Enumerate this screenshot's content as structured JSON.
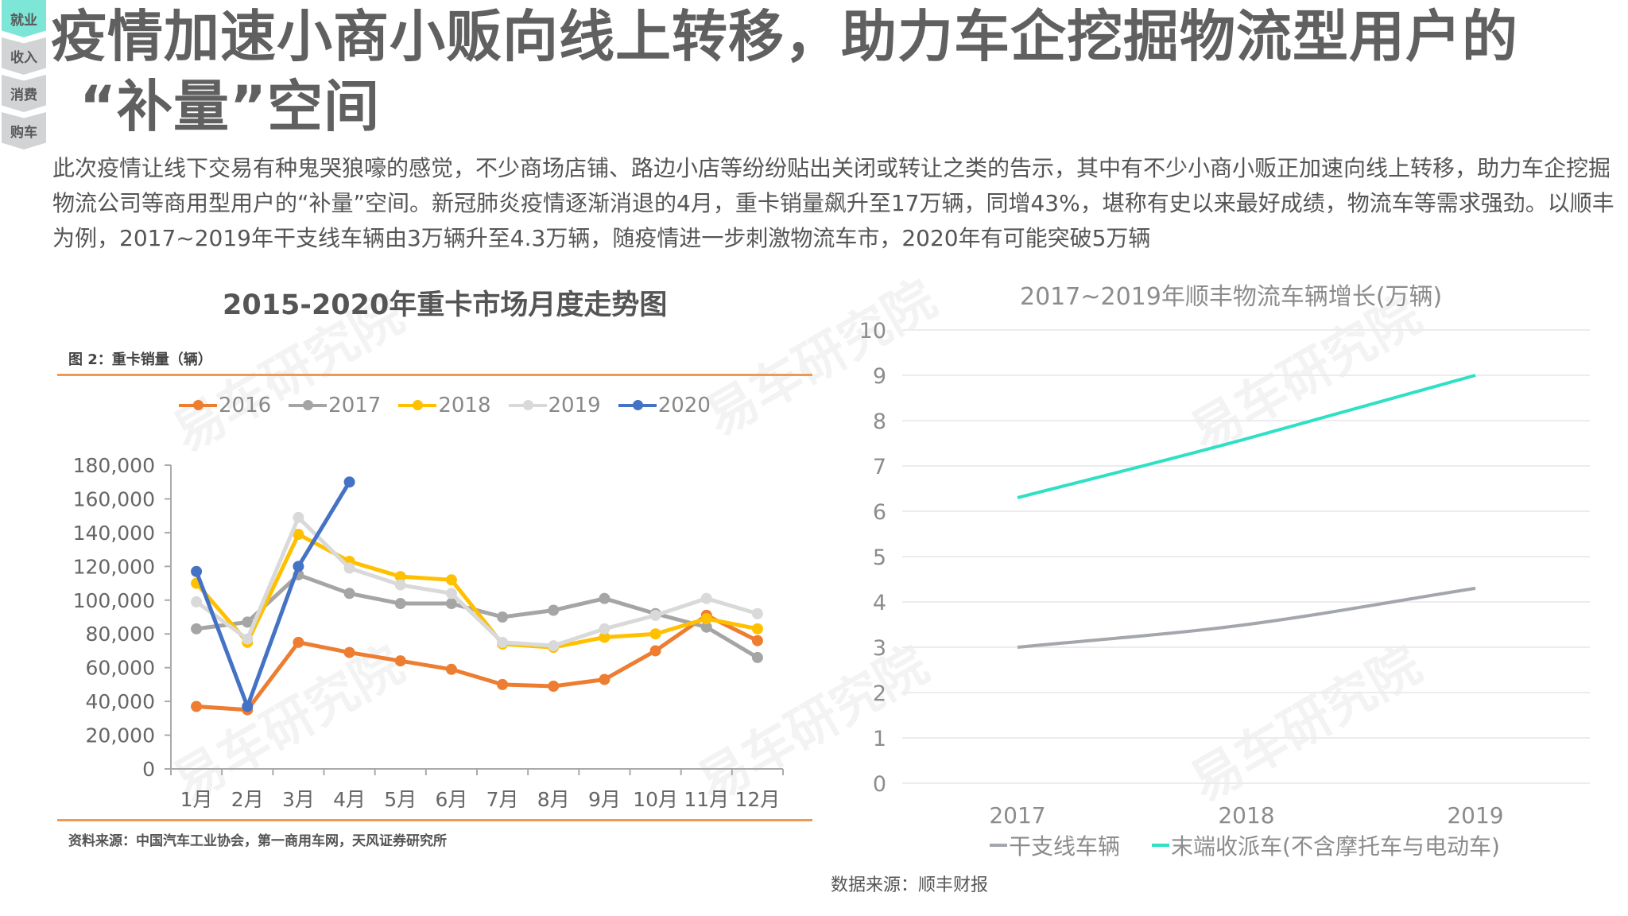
{
  "sidenav": {
    "items": [
      {
        "label": "就业",
        "active": true
      },
      {
        "label": "收入",
        "active": false
      },
      {
        "label": "消费",
        "active": false
      },
      {
        "label": "购车",
        "active": false
      }
    ],
    "active_color": "#7de6d6",
    "inactive_color": "#d2d3d5"
  },
  "header": {
    "title_line1": "疫情加速小商小贩向线上转移，助力车企挖掘物流型用户的",
    "title_line2": "“补量”空间"
  },
  "body": {
    "paragraph": "此次疫情让线下交易有种鬼哭狼嚎的感觉，不少商场店铺、路边小店等纷纷贴出关闭或转让之类的告示，其中有不少小商小贩正加速向线上转移，助力车企挖掘物流公司等商用型用户的“补量”空间。新冠肺炎疫情逐渐消退的4月，重卡销量飙升至17万辆，同增43%，堪称有史以来最好成绩，物流车等需求强劲。以顺丰为例，2017~2019年干支线车辆由3万辆升至4.3万辆，随疫情进一步刺激物流车市，2020年有可能突破5万辆"
  },
  "watermark": "易车研究院",
  "left_chart": {
    "title": "2015-2020年重卡市场月度走势图",
    "figure_label": "图 2：重卡销量（辆）",
    "source": "资料来源：中国汽车工业协会，第一商用车网，天风证券研究所"
  },
  "right_chart": {
    "title": "2017~2019年顺丰物流车辆增长(万辆)",
    "source": "数据来源：顺丰财报"
  },
  "chart_data": [
    {
      "type": "line",
      "title": "2015-2020年重卡市场月度走势图",
      "subtitle": "图 2：重卡销量（辆）",
      "xlabel": "",
      "ylabel": "重卡销量（辆）",
      "categories": [
        "1月",
        "2月",
        "3月",
        "4月",
        "5月",
        "6月",
        "7月",
        "8月",
        "9月",
        "10月",
        "11月",
        "12月"
      ],
      "ylim": [
        0,
        180000
      ],
      "yticks": [
        0,
        20000,
        40000,
        60000,
        80000,
        100000,
        120000,
        140000,
        160000,
        180000
      ],
      "ytick_labels": [
        "0",
        "20,000",
        "40,000",
        "60,000",
        "80,000",
        "100,000",
        "120,000",
        "140,000",
        "160,000",
        "180,000"
      ],
      "legend_position": "top",
      "grid": false,
      "series": [
        {
          "name": "2016",
          "color": "#ed7d31",
          "values": [
            37000,
            35000,
            75000,
            69000,
            64000,
            59000,
            50000,
            49000,
            53000,
            70000,
            91000,
            76000
          ]
        },
        {
          "name": "2017",
          "color": "#a5a5a5",
          "values": [
            83000,
            87000,
            115000,
            104000,
            98000,
            98000,
            90000,
            94000,
            101000,
            92000,
            84000,
            66000
          ]
        },
        {
          "name": "2018",
          "color": "#ffc000",
          "values": [
            110000,
            75000,
            139000,
            123000,
            114000,
            112000,
            74000,
            72000,
            78000,
            80000,
            89000,
            83000
          ]
        },
        {
          "name": "2019",
          "color": "#d9d9d9",
          "values": [
            99000,
            77000,
            149000,
            119000,
            109000,
            104000,
            75000,
            73000,
            83000,
            91000,
            101000,
            92000
          ]
        },
        {
          "name": "2020",
          "color": "#4472c4",
          "values": [
            117000,
            37000,
            120000,
            170000,
            null,
            null,
            null,
            null,
            null,
            null,
            null,
            null
          ]
        }
      ],
      "source": "资料来源：中国汽车工业协会，第一商用车网，天风证券研究所"
    },
    {
      "type": "line",
      "title": "2017~2019年顺丰物流车辆增长(万辆)",
      "xlabel": "",
      "ylabel": "万辆",
      "categories": [
        "2017",
        "2018",
        "2019"
      ],
      "ylim": [
        0,
        10
      ],
      "yticks": [
        0,
        1,
        2,
        3,
        4,
        5,
        6,
        7,
        8,
        9,
        10
      ],
      "grid": true,
      "legend_position": "bottom",
      "series": [
        {
          "name": "干支线车辆",
          "color": "#a3a6ab",
          "values": [
            3.0,
            3.5,
            4.3
          ]
        },
        {
          "name": "末端收派车(不含摩托车与电动车)",
          "color": "#2ee0c4",
          "values": [
            6.3,
            7.6,
            9.0
          ]
        }
      ],
      "source": "数据来源：顺丰财报"
    }
  ]
}
